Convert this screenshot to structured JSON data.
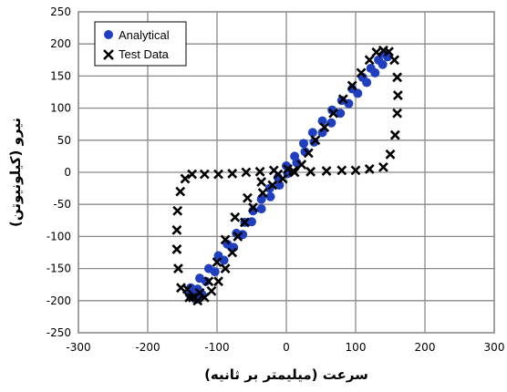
{
  "chart_data": {
    "type": "scatter",
    "title": "",
    "xlabel": "سرعت (میلیمتر بر ثانیه)",
    "ylabel": "نیرو (کیلونیوتن)",
    "xlim": [
      -300,
      300
    ],
    "ylim": [
      -250,
      250
    ],
    "xticks": [
      -300,
      -200,
      -100,
      0,
      100,
      200,
      300
    ],
    "yticks": [
      -250,
      -200,
      -150,
      -100,
      -50,
      0,
      50,
      100,
      150,
      200,
      250
    ],
    "xtick_labels": [
      "-300",
      "-200",
      "-100",
      "0",
      "100",
      "200",
      "300"
    ],
    "ytick_labels": [
      "-250",
      "-200",
      "-150",
      "-100",
      "-50",
      "0",
      "50",
      "100",
      "150",
      "200",
      "250"
    ],
    "grid": true,
    "legend_position": "top-left",
    "series": [
      {
        "name": "Analytical",
        "marker": "circle",
        "color": "#1f3fbf",
        "points": [
          [
            -138,
            -180
          ],
          [
            -125,
            -165
          ],
          [
            -112,
            -150
          ],
          [
            -98,
            -130
          ],
          [
            -85,
            -112
          ],
          [
            -72,
            -95
          ],
          [
            -60,
            -78
          ],
          [
            -48,
            -60
          ],
          [
            -36,
            -42
          ],
          [
            -24,
            -25
          ],
          [
            -12,
            -8
          ],
          [
            0,
            10
          ],
          [
            12,
            25
          ],
          [
            25,
            45
          ],
          [
            38,
            62
          ],
          [
            52,
            80
          ],
          [
            66,
            97
          ],
          [
            80,
            112
          ],
          [
            95,
            130
          ],
          [
            110,
            148
          ],
          [
            122,
            162
          ],
          [
            133,
            175
          ],
          [
            142,
            185
          ],
          [
            146,
            180
          ],
          [
            139,
            168
          ],
          [
            128,
            155
          ],
          [
            116,
            140
          ],
          [
            103,
            123
          ],
          [
            90,
            107
          ],
          [
            78,
            92
          ],
          [
            65,
            77
          ],
          [
            52,
            62
          ],
          [
            40,
            47
          ],
          [
            27,
            32
          ],
          [
            15,
            15
          ],
          [
            2,
            -2
          ],
          [
            -10,
            -20
          ],
          [
            -23,
            -38
          ],
          [
            -36,
            -57
          ],
          [
            -50,
            -77
          ],
          [
            -63,
            -97
          ],
          [
            -76,
            -117
          ],
          [
            -90,
            -137
          ],
          [
            -103,
            -155
          ],
          [
            -116,
            -170
          ],
          [
            -128,
            -182
          ],
          [
            -136,
            -193
          ],
          [
            -130,
            -198
          ],
          [
            -122,
            -190
          ],
          [
            -140,
            -190
          ],
          [
            -133,
            -185
          ]
        ]
      },
      {
        "name": "Test Data",
        "marker": "x",
        "color": "#000000",
        "points": [
          [
            -135,
            -195
          ],
          [
            -128,
            -200
          ],
          [
            -118,
            -195
          ],
          [
            -108,
            -185
          ],
          [
            -98,
            -170
          ],
          [
            -88,
            -150
          ],
          [
            -78,
            -125
          ],
          [
            -70,
            -100
          ],
          [
            -60,
            -78
          ],
          [
            -48,
            -55
          ],
          [
            -34,
            -32
          ],
          [
            -20,
            -20
          ],
          [
            -5,
            -10
          ],
          [
            10,
            2
          ],
          [
            22,
            12
          ],
          [
            32,
            30
          ],
          [
            42,
            50
          ],
          [
            55,
            70
          ],
          [
            68,
            92
          ],
          [
            82,
            114
          ],
          [
            95,
            135
          ],
          [
            108,
            155
          ],
          [
            120,
            175
          ],
          [
            130,
            187
          ],
          [
            140,
            190
          ],
          [
            148,
            188
          ],
          [
            156,
            175
          ],
          [
            160,
            148
          ],
          [
            161,
            120
          ],
          [
            160,
            92
          ],
          [
            157,
            58
          ],
          [
            150,
            28
          ],
          [
            140,
            8
          ],
          [
            120,
            5
          ],
          [
            100,
            3
          ],
          [
            80,
            3
          ],
          [
            58,
            2
          ],
          [
            35,
            1
          ],
          [
            12,
            0
          ],
          [
            -12,
            -3
          ],
          [
            -36,
            -15
          ],
          [
            -56,
            -40
          ],
          [
            -74,
            -70
          ],
          [
            -88,
            -105
          ],
          [
            -100,
            -140
          ],
          [
            -112,
            -170
          ],
          [
            -125,
            -188
          ],
          [
            -152,
            -180
          ],
          [
            -156,
            -150
          ],
          [
            -158,
            -120
          ],
          [
            -158,
            -90
          ],
          [
            -157,
            -60
          ],
          [
            -153,
            -30
          ],
          [
            -146,
            -10
          ],
          [
            -136,
            -3
          ],
          [
            -118,
            -3
          ],
          [
            -98,
            -3
          ],
          [
            -78,
            -2
          ],
          [
            -58,
            0
          ],
          [
            -38,
            1
          ],
          [
            -18,
            3
          ],
          [
            2,
            5
          ],
          [
            -140,
            -195
          ],
          [
            -143,
            -182
          ]
        ]
      }
    ]
  }
}
